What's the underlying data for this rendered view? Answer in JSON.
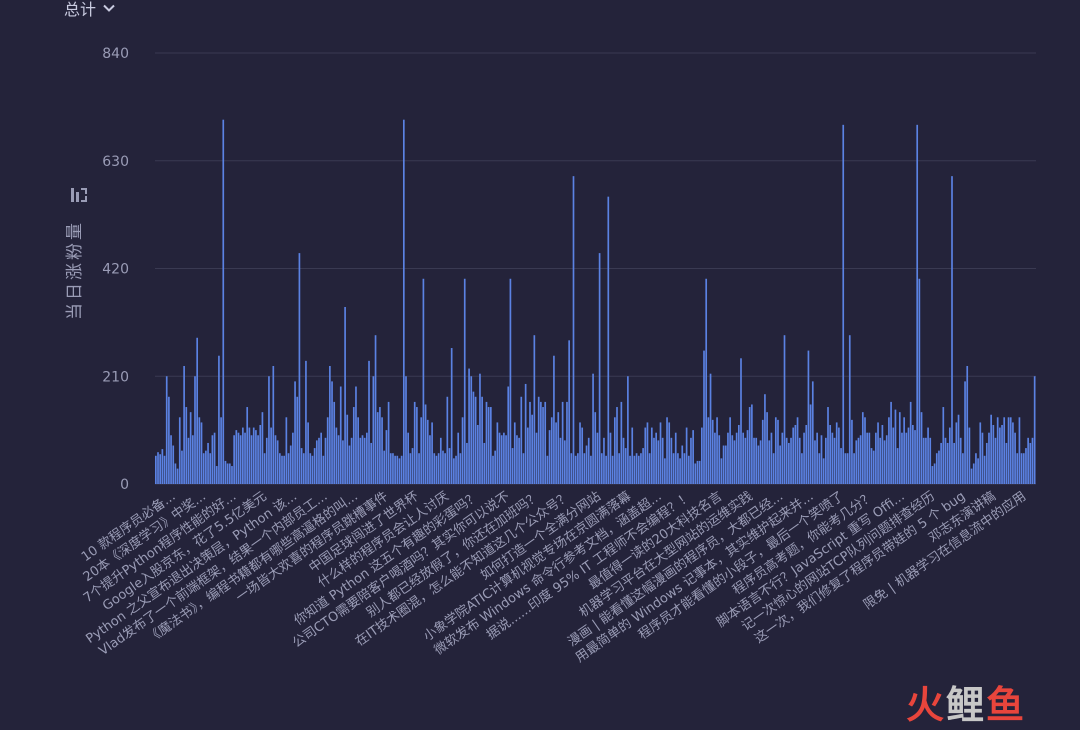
{
  "header": {
    "metric_label": "总计"
  },
  "icons": {
    "dropdown": "chevron-down-icon",
    "sort": "sort-icon"
  },
  "colors": {
    "background": "#24233a",
    "bar": "#5b82e3",
    "grid": "#3a3a52",
    "axis_text": "#9a9cb6"
  },
  "watermark": {
    "part1": "火",
    "part2": "鲤",
    "part3": "鱼"
  },
  "chart_data": {
    "type": "bar",
    "ylabel": "当日涨粉量",
    "yticks": [
      0,
      210,
      420,
      630,
      840
    ],
    "ylim": [
      0,
      840
    ],
    "grid": true,
    "x_labels_rotated": true,
    "tick_labels": [
      "10 款程序员必备...",
      "20本《深度学习》中奖...",
      "7个提升Python程序性能的好...",
      "Google入股京东，花了5.5亿美元",
      "Python 之父宣布退出决策层，Python 该...",
      "Vlad发布了一个前端框架，结果一个内部员工...",
      "《魔法书》，编程书籍都有哪些高逼格的叫...",
      "一场皆大欢喜的程序员跳槽事件",
      "中国足球闯进了世界杯",
      "什么样的程序员会让人讨厌",
      "你知道 Python 这五个有趣的彩蛋吗？",
      "公司CTO需要陪客户喝酒吗？其实你可以说不",
      "别人都已经放假了，你还在加班吗？",
      "在IT技术圈混，怎么能不知道这几个公众号？",
      "如何打造一个全满分网站",
      "小象学院ATIC计算机视觉专场在京圆满落幕",
      "微软发布 Windows 命令行参考文档，涵盖超...",
      "据说......印度 95% IT 工程师不会编程？！",
      "最值得一读的20大科技名言",
      "机器学习平台在大型网站的运维实践",
      "漫画 | 能看懂这幅漫画的程序员，大都已经...",
      "用最简单的 Windows 记事本，其实维护起来并...",
      "程序员才能看懂的小段子，最后一个笑喷了",
      "程序员高考题，你能考几分？",
      "脚本语言不行？JavaScript 重写 Offi...",
      "记一次惊心的网站TCP队列问题排查经历",
      "这一次，我们修复了程序员带娃的 5 个 bug",
      "邓志东演讲稿",
      "限免 | 机器学习在信息流中的应用"
    ],
    "values": [
      55,
      62,
      58,
      68,
      55,
      210,
      170,
      95,
      75,
      40,
      30,
      130,
      65,
      230,
      150,
      90,
      140,
      95,
      210,
      285,
      130,
      120,
      60,
      65,
      80,
      60,
      95,
      100,
      35,
      250,
      130,
      710,
      45,
      40,
      40,
      35,
      95,
      105,
      100,
      95,
      110,
      100,
      150,
      110,
      95,
      110,
      105,
      95,
      115,
      140,
      60,
      90,
      210,
      110,
      230,
      95,
      85,
      60,
      55,
      55,
      130,
      60,
      75,
      100,
      200,
      170,
      450,
      70,
      60,
      240,
      120,
      60,
      55,
      70,
      85,
      90,
      100,
      55,
      90,
      130,
      230,
      200,
      160,
      110,
      95,
      190,
      85,
      345,
      135,
      75,
      90,
      150,
      190,
      130,
      90,
      95,
      90,
      100,
      240,
      80,
      210,
      290,
      140,
      150,
      130,
      65,
      105,
      160,
      60,
      60,
      55,
      55,
      50,
      55,
      710,
      210,
      100,
      60,
      70,
      160,
      150,
      60,
      130,
      400,
      155,
      125,
      95,
      120,
      60,
      55,
      60,
      90,
      65,
      60,
      170,
      70,
      265,
      50,
      55,
      100,
      60,
      130,
      400,
      80,
      225,
      210,
      180,
      170,
      115,
      215,
      170,
      80,
      160,
      150,
      150,
      55,
      65,
      120,
      100,
      95,
      100,
      95,
      190,
      400,
      70,
      120,
      95,
      90,
      170,
      60,
      195,
      110,
      160,
      135,
      290,
      100,
      170,
      160,
      150,
      160,
      55,
      105,
      130,
      250,
      120,
      140,
      90,
      160,
      85,
      160,
      280,
      60,
      600,
      55,
      60,
      120,
      110,
      60,
      75,
      90,
      55,
      215,
      140,
      100,
      450,
      60,
      90,
      55,
      560,
      100,
      55,
      130,
      150,
      60,
      160,
      90,
      70,
      210,
      55,
      110,
      55,
      60,
      55,
      60,
      70,
      110,
      120,
      60,
      110,
      90,
      100,
      85,
      120,
      90,
      50,
      130,
      120,
      90,
      60,
      100,
      60,
      50,
      75,
      60,
      110,
      55,
      90,
      105,
      40,
      45,
      45,
      110,
      260,
      400,
      130,
      215,
      125,
      100,
      130,
      95,
      50,
      75,
      75,
      100,
      130,
      95,
      85,
      100,
      115,
      245,
      100,
      90,
      105,
      150,
      155,
      90,
      90,
      75,
      85,
      125,
      175,
      140,
      85,
      100,
      60,
      130,
      125,
      75,
      100,
      290,
      90,
      80,
      90,
      110,
      115,
      130,
      90,
      60,
      100,
      115,
      260,
      155,
      200,
      85,
      100,
      60,
      95,
      50,
      90,
      150,
      115,
      100,
      90,
      120,
      110,
      70,
      700,
      60,
      60,
      290,
      125,
      60,
      85,
      90,
      95,
      140,
      130,
      100,
      100,
      70,
      65,
      100,
      120,
      90,
      115,
      85,
      95,
      130,
      160,
      110,
      145,
      70,
      140,
      100,
      130,
      100,
      110,
      160,
      115,
      105,
      700,
      400,
      140,
      90,
      90,
      110,
      90,
      35,
      40,
      60,
      65,
      80,
      150,
      90,
      80,
      110,
      600,
      80,
      120,
      135,
      90,
      60,
      200,
      230,
      110,
      30,
      40,
      60,
      50,
      120,
      100,
      55,
      80,
      100,
      135,
      115,
      90,
      130,
      110,
      115,
      130,
      80,
      130,
      130,
      120,
      100,
      60,
      130,
      60,
      60,
      70,
      90,
      80,
      90,
      210
    ]
  }
}
